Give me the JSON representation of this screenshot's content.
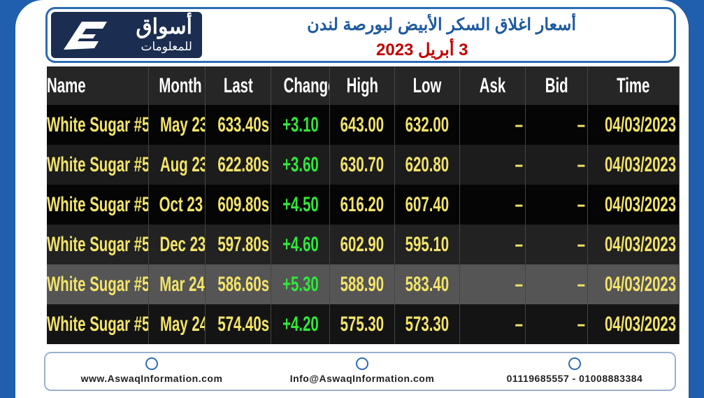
{
  "header": {
    "logo_name": "أسواق",
    "logo_sub": "للمعلومات",
    "title": "أسعار اغلاق السكر الأبيض لبورصة لندن",
    "date": "3 أبريل 2023"
  },
  "table": {
    "columns": [
      "Name",
      "Month",
      "Last",
      "Change",
      "High",
      "Low",
      "Ask",
      "Bid",
      "Time"
    ],
    "rows": [
      [
        "White Sugar #5",
        "May 23",
        "633.40s",
        "+3.10",
        "643.00",
        "632.00",
        "–",
        "–",
        "04/03/2023"
      ],
      [
        "White Sugar #5",
        "Aug 23",
        "622.80s",
        "+3.60",
        "630.70",
        "620.80",
        "–",
        "–",
        "04/03/2023"
      ],
      [
        "White Sugar #5",
        "Oct 23",
        "609.80s",
        "+4.50",
        "616.20",
        "607.40",
        "–",
        "–",
        "04/03/2023"
      ],
      [
        "White Sugar #5",
        "Dec 23",
        "597.80s",
        "+4.60",
        "602.90",
        "595.10",
        "–",
        "–",
        "04/03/2023"
      ],
      [
        "White Sugar #5",
        "Mar 24",
        "586.60s",
        "+5.30",
        "588.90",
        "583.40",
        "–",
        "–",
        "04/03/2023"
      ],
      [
        "White Sugar #5",
        "May 24",
        "574.40s",
        "+4.20",
        "575.30",
        "573.30",
        "–",
        "–",
        "04/03/2023"
      ]
    ]
  },
  "footer": {
    "website": "www.AswaqInformation.com",
    "email": "Info@AswaqInformation.com",
    "phones": "01119685557 - 01008883384"
  }
}
